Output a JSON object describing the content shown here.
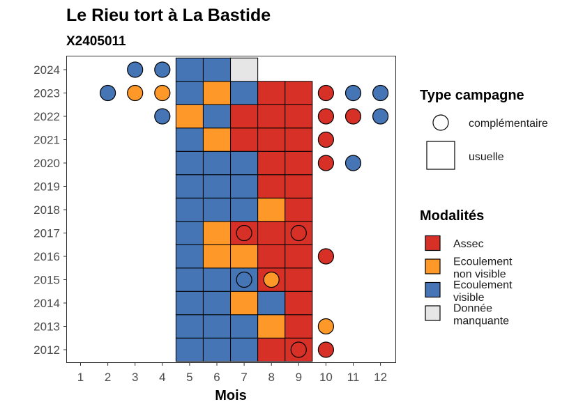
{
  "chart_data": {
    "type": "heatmap",
    "title": "Le Rieu tort à La Bastide",
    "subtitle": "X2405011",
    "xlabel": "Mois",
    "ylabel": "",
    "x_ticks": [
      "1",
      "2",
      "3",
      "4",
      "5",
      "6",
      "7",
      "8",
      "9",
      "10",
      "11",
      "12"
    ],
    "y_ticks": [
      "2012",
      "2013",
      "2014",
      "2015",
      "2016",
      "2017",
      "2018",
      "2019",
      "2020",
      "2021",
      "2022",
      "2023",
      "2024"
    ],
    "colors": {
      "assec": "#D73027",
      "ecoulement_non_visible": "#FE9929",
      "ecoulement_visible": "#4575B4",
      "donnee_manquante": "#E6E6E6"
    },
    "legend_shape": {
      "title": "Type campagne",
      "items": [
        {
          "key": "complementaire",
          "label": "complémentaire"
        },
        {
          "key": "usuelle",
          "label": "usuelle"
        }
      ]
    },
    "legend_fill": {
      "title": "Modalités",
      "items": [
        {
          "key": "assec",
          "lines": [
            "Assec"
          ]
        },
        {
          "key": "ecoulement_non_visible",
          "lines": [
            "Ecoulement",
            "non visible"
          ]
        },
        {
          "key": "ecoulement_visible",
          "lines": [
            "Ecoulement",
            "visible"
          ]
        },
        {
          "key": "donnee_manquante",
          "lines": [
            "Donnée",
            "manquante"
          ]
        }
      ]
    },
    "usuelle": [
      {
        "year": 2012,
        "month": 5,
        "mod": "ecoulement_visible"
      },
      {
        "year": 2012,
        "month": 6,
        "mod": "ecoulement_visible"
      },
      {
        "year": 2012,
        "month": 7,
        "mod": "ecoulement_visible"
      },
      {
        "year": 2012,
        "month": 8,
        "mod": "assec"
      },
      {
        "year": 2012,
        "month": 9,
        "mod": "assec"
      },
      {
        "year": 2013,
        "month": 5,
        "mod": "ecoulement_visible"
      },
      {
        "year": 2013,
        "month": 6,
        "mod": "ecoulement_visible"
      },
      {
        "year": 2013,
        "month": 7,
        "mod": "ecoulement_visible"
      },
      {
        "year": 2013,
        "month": 8,
        "mod": "ecoulement_non_visible"
      },
      {
        "year": 2013,
        "month": 9,
        "mod": "assec"
      },
      {
        "year": 2014,
        "month": 5,
        "mod": "ecoulement_visible"
      },
      {
        "year": 2014,
        "month": 6,
        "mod": "ecoulement_visible"
      },
      {
        "year": 2014,
        "month": 7,
        "mod": "ecoulement_non_visible"
      },
      {
        "year": 2014,
        "month": 8,
        "mod": "ecoulement_visible"
      },
      {
        "year": 2014,
        "month": 9,
        "mod": "assec"
      },
      {
        "year": 2015,
        "month": 5,
        "mod": "ecoulement_visible"
      },
      {
        "year": 2015,
        "month": 6,
        "mod": "ecoulement_visible"
      },
      {
        "year": 2015,
        "month": 7,
        "mod": "ecoulement_visible"
      },
      {
        "year": 2015,
        "month": 8,
        "mod": "assec"
      },
      {
        "year": 2015,
        "month": 9,
        "mod": "assec"
      },
      {
        "year": 2016,
        "month": 5,
        "mod": "ecoulement_visible"
      },
      {
        "year": 2016,
        "month": 6,
        "mod": "ecoulement_non_visible"
      },
      {
        "year": 2016,
        "month": 7,
        "mod": "ecoulement_non_visible"
      },
      {
        "year": 2016,
        "month": 8,
        "mod": "assec"
      },
      {
        "year": 2016,
        "month": 9,
        "mod": "assec"
      },
      {
        "year": 2017,
        "month": 5,
        "mod": "ecoulement_visible"
      },
      {
        "year": 2017,
        "month": 6,
        "mod": "ecoulement_non_visible"
      },
      {
        "year": 2017,
        "month": 7,
        "mod": "assec"
      },
      {
        "year": 2017,
        "month": 8,
        "mod": "assec"
      },
      {
        "year": 2017,
        "month": 9,
        "mod": "assec"
      },
      {
        "year": 2018,
        "month": 5,
        "mod": "ecoulement_visible"
      },
      {
        "year": 2018,
        "month": 6,
        "mod": "ecoulement_visible"
      },
      {
        "year": 2018,
        "month": 7,
        "mod": "ecoulement_visible"
      },
      {
        "year": 2018,
        "month": 8,
        "mod": "ecoulement_non_visible"
      },
      {
        "year": 2018,
        "month": 9,
        "mod": "assec"
      },
      {
        "year": 2019,
        "month": 5,
        "mod": "ecoulement_visible"
      },
      {
        "year": 2019,
        "month": 6,
        "mod": "ecoulement_visible"
      },
      {
        "year": 2019,
        "month": 7,
        "mod": "ecoulement_visible"
      },
      {
        "year": 2019,
        "month": 8,
        "mod": "assec"
      },
      {
        "year": 2019,
        "month": 9,
        "mod": "assec"
      },
      {
        "year": 2020,
        "month": 5,
        "mod": "ecoulement_visible"
      },
      {
        "year": 2020,
        "month": 6,
        "mod": "ecoulement_visible"
      },
      {
        "year": 2020,
        "month": 7,
        "mod": "ecoulement_visible"
      },
      {
        "year": 2020,
        "month": 8,
        "mod": "assec"
      },
      {
        "year": 2020,
        "month": 9,
        "mod": "assec"
      },
      {
        "year": 2021,
        "month": 5,
        "mod": "ecoulement_visible"
      },
      {
        "year": 2021,
        "month": 6,
        "mod": "ecoulement_non_visible"
      },
      {
        "year": 2021,
        "month": 7,
        "mod": "assec"
      },
      {
        "year": 2021,
        "month": 8,
        "mod": "assec"
      },
      {
        "year": 2021,
        "month": 9,
        "mod": "assec"
      },
      {
        "year": 2022,
        "month": 5,
        "mod": "ecoulement_non_visible"
      },
      {
        "year": 2022,
        "month": 6,
        "mod": "ecoulement_visible"
      },
      {
        "year": 2022,
        "month": 7,
        "mod": "assec"
      },
      {
        "year": 2022,
        "month": 8,
        "mod": "assec"
      },
      {
        "year": 2022,
        "month": 9,
        "mod": "assec"
      },
      {
        "year": 2023,
        "month": 5,
        "mod": "ecoulement_visible"
      },
      {
        "year": 2023,
        "month": 6,
        "mod": "ecoulement_non_visible"
      },
      {
        "year": 2023,
        "month": 7,
        "mod": "ecoulement_visible"
      },
      {
        "year": 2023,
        "month": 8,
        "mod": "assec"
      },
      {
        "year": 2023,
        "month": 9,
        "mod": "assec"
      },
      {
        "year": 2024,
        "month": 5,
        "mod": "ecoulement_visible"
      },
      {
        "year": 2024,
        "month": 6,
        "mod": "ecoulement_visible"
      },
      {
        "year": 2024,
        "month": 7,
        "mod": "donnee_manquante"
      }
    ],
    "complementaire": [
      {
        "year": 2012,
        "month": 9,
        "mod": "assec"
      },
      {
        "year": 2012,
        "month": 10,
        "mod": "assec"
      },
      {
        "year": 2013,
        "month": 10,
        "mod": "ecoulement_non_visible"
      },
      {
        "year": 2015,
        "month": 7,
        "mod": "ecoulement_visible"
      },
      {
        "year": 2015,
        "month": 8,
        "mod": "ecoulement_non_visible"
      },
      {
        "year": 2016,
        "month": 10,
        "mod": "assec"
      },
      {
        "year": 2017,
        "month": 7,
        "mod": "assec"
      },
      {
        "year": 2017,
        "month": 9,
        "mod": "assec"
      },
      {
        "year": 2020,
        "month": 10,
        "mod": "assec"
      },
      {
        "year": 2020,
        "month": 11,
        "mod": "ecoulement_visible"
      },
      {
        "year": 2021,
        "month": 10,
        "mod": "assec"
      },
      {
        "year": 2022,
        "month": 4,
        "mod": "ecoulement_visible"
      },
      {
        "year": 2022,
        "month": 10,
        "mod": "assec"
      },
      {
        "year": 2022,
        "month": 11,
        "mod": "assec"
      },
      {
        "year": 2022,
        "month": 12,
        "mod": "ecoulement_visible"
      },
      {
        "year": 2023,
        "month": 2,
        "mod": "ecoulement_visible"
      },
      {
        "year": 2023,
        "month": 3,
        "mod": "ecoulement_non_visible"
      },
      {
        "year": 2023,
        "month": 4,
        "mod": "ecoulement_non_visible"
      },
      {
        "year": 2023,
        "month": 10,
        "mod": "assec"
      },
      {
        "year": 2023,
        "month": 11,
        "mod": "ecoulement_visible"
      },
      {
        "year": 2023,
        "month": 12,
        "mod": "ecoulement_visible"
      },
      {
        "year": 2024,
        "month": 3,
        "mod": "ecoulement_visible"
      },
      {
        "year": 2024,
        "month": 4,
        "mod": "ecoulement_visible"
      }
    ]
  }
}
